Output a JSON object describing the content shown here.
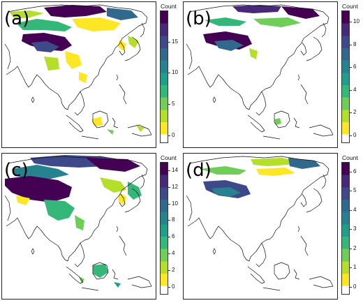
{
  "figure": {
    "panels": [
      {
        "id": "a",
        "label": "(a)",
        "legend_title": "Count",
        "scale_max": 20,
        "ticks": [
          "0",
          "5",
          "10",
          "15"
        ],
        "tick_values": [
          0,
          5,
          10,
          15
        ],
        "colors": [
          "#fde725",
          "#b5de2b",
          "#6ece58",
          "#35b779",
          "#1f9e89",
          "#26828e",
          "#31688e",
          "#3e4989",
          "#482878",
          "#440154"
        ],
        "has_bottom_white": true
      },
      {
        "id": "b",
        "label": "(b)",
        "legend_title": "Count",
        "scale_max": 11,
        "ticks": [
          "0",
          "2",
          "4",
          "6",
          "8",
          "10"
        ],
        "tick_values": [
          0,
          2,
          4,
          6,
          8,
          10
        ],
        "colors": [
          "#fde725",
          "#b5de2b",
          "#6ece58",
          "#35b779",
          "#1f9e89",
          "#26828e",
          "#31688e",
          "#3e4989",
          "#482878",
          "#440154"
        ],
        "has_bottom_white": true
      },
      {
        "id": "c",
        "label": "(c)",
        "legend_title": "Count",
        "scale_max": 15,
        "ticks": [
          "0",
          "2",
          "4",
          "6",
          "8",
          "10",
          "12",
          "14"
        ],
        "tick_values": [
          0,
          2,
          4,
          6,
          8,
          10,
          12,
          14
        ],
        "colors": [
          "#fde725",
          "#b5de2b",
          "#6ece58",
          "#35b779",
          "#1f9e89",
          "#26828e",
          "#31688e",
          "#3e4989",
          "#482878",
          "#440154"
        ],
        "has_bottom_white": true
      },
      {
        "id": "d",
        "label": "(d)",
        "legend_title": "Count",
        "scale_max": 6.5,
        "ticks": [
          "0",
          "1",
          "2",
          "3",
          "4",
          "5",
          "6"
        ],
        "tick_values": [
          0,
          1,
          2,
          3,
          4,
          5,
          6
        ],
        "colors": [
          "#fde725",
          "#b5de2b",
          "#6ece58",
          "#35b779",
          "#1f9e89",
          "#26828e",
          "#31688e",
          "#3e4989",
          "#482878",
          "#440154"
        ],
        "has_bottom_white": true
      }
    ]
  }
}
